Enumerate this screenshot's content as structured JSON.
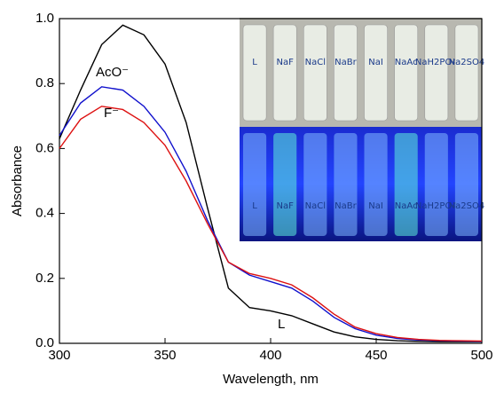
{
  "chart_data": {
    "type": "line",
    "x_label": "Wavelength, nm",
    "y_label": "Absorbance",
    "x": [
      300,
      310,
      320,
      330,
      340,
      350,
      360,
      370,
      380,
      390,
      400,
      410,
      420,
      430,
      440,
      450,
      460,
      470,
      480,
      490,
      500
    ],
    "series": [
      {
        "name": "L",
        "color": "#000000",
        "values": [
          0.63,
          0.78,
          0.92,
          0.98,
          0.95,
          0.86,
          0.68,
          0.42,
          0.17,
          0.11,
          0.1,
          0.085,
          0.06,
          0.035,
          0.02,
          0.012,
          0.008,
          0.006,
          0.005,
          0.005,
          0.005
        ]
      },
      {
        "name": "AcO⁻",
        "color": "#1010cc",
        "values": [
          0.64,
          0.74,
          0.79,
          0.78,
          0.73,
          0.65,
          0.53,
          0.38,
          0.25,
          0.21,
          0.19,
          0.17,
          0.13,
          0.08,
          0.045,
          0.025,
          0.015,
          0.01,
          0.008,
          0.007,
          0.006
        ]
      },
      {
        "name": "F⁻",
        "color": "#dd1111",
        "values": [
          0.6,
          0.69,
          0.73,
          0.72,
          0.68,
          0.61,
          0.5,
          0.37,
          0.25,
          0.215,
          0.2,
          0.18,
          0.14,
          0.09,
          0.05,
          0.03,
          0.018,
          0.012,
          0.009,
          0.008,
          0.007
        ]
      }
    ],
    "xlim": [
      300,
      500
    ],
    "xticks": [
      300,
      350,
      400,
      450,
      500
    ],
    "ylim": [
      0,
      1
    ],
    "yticks": [
      {
        "value": 0,
        "label": "0.0"
      },
      0.2,
      0.4,
      0.6,
      0.8,
      {
        "value": 1,
        "label": "1.0"
      }
    ],
    "inset_labels": [
      "L",
      "NaF",
      "NaCl",
      "NaBr",
      "NaI",
      "NaAc",
      "NaH2PO4",
      "Na2SO4"
    ]
  }
}
